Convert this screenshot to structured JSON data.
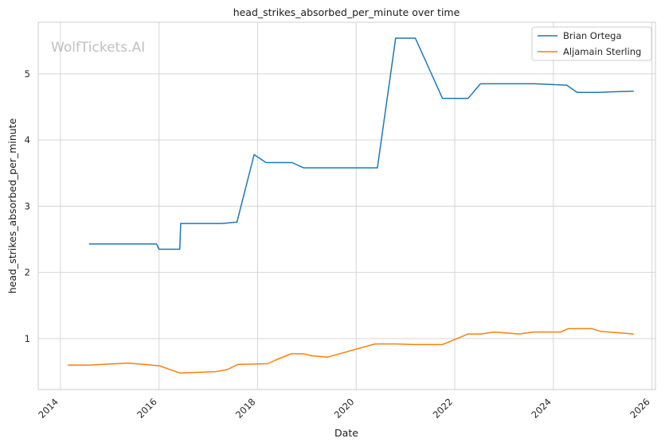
{
  "chart_data": {
    "type": "line",
    "title": "head_strikes_absorbed_per_minute over time",
    "xlabel": "Date",
    "ylabel": "head_strikes_absorbed_per_minute",
    "watermark": "WolfTickets.AI",
    "x_ticks": [
      "2014",
      "2016",
      "2018",
      "2020",
      "2022",
      "2024",
      "2026"
    ],
    "y_ticks": [
      "1",
      "2",
      "3",
      "4",
      "5"
    ],
    "xlim": [
      2013.55,
      2026.07
    ],
    "ylim": [
      0.23,
      5.78
    ],
    "grid": true,
    "legend_position": "top-right",
    "series": [
      {
        "name": "Brian Ortega",
        "color": "#1f77b4",
        "points": [
          [
            2014.58,
            2.43
          ],
          [
            2015.95,
            2.43
          ],
          [
            2016.0,
            2.35
          ],
          [
            2016.42,
            2.35
          ],
          [
            2016.44,
            2.74
          ],
          [
            2017.27,
            2.74
          ],
          [
            2017.58,
            2.76
          ],
          [
            2017.93,
            3.78
          ],
          [
            2018.17,
            3.66
          ],
          [
            2018.7,
            3.66
          ],
          [
            2018.93,
            3.58
          ],
          [
            2020.43,
            3.58
          ],
          [
            2020.8,
            5.54
          ],
          [
            2021.2,
            5.54
          ],
          [
            2021.75,
            4.63
          ],
          [
            2022.27,
            4.63
          ],
          [
            2022.52,
            4.85
          ],
          [
            2023.62,
            4.85
          ],
          [
            2024.27,
            4.83
          ],
          [
            2024.48,
            4.72
          ],
          [
            2024.9,
            4.72
          ],
          [
            2025.63,
            4.74
          ]
        ]
      },
      {
        "name": "Aljamain Sterling",
        "color": "#ff7f0e",
        "points": [
          [
            2014.15,
            0.6
          ],
          [
            2014.58,
            0.6
          ],
          [
            2015.38,
            0.63
          ],
          [
            2016.0,
            0.59
          ],
          [
            2016.42,
            0.48
          ],
          [
            2017.15,
            0.5
          ],
          [
            2017.38,
            0.53
          ],
          [
            2017.6,
            0.61
          ],
          [
            2018.2,
            0.62
          ],
          [
            2018.38,
            0.68
          ],
          [
            2018.68,
            0.77
          ],
          [
            2018.93,
            0.77
          ],
          [
            2019.1,
            0.74
          ],
          [
            2019.42,
            0.72
          ],
          [
            2020.38,
            0.92
          ],
          [
            2020.8,
            0.92
          ],
          [
            2021.17,
            0.91
          ],
          [
            2021.75,
            0.91
          ],
          [
            2022.27,
            1.07
          ],
          [
            2022.52,
            1.07
          ],
          [
            2022.8,
            1.1
          ],
          [
            2023.3,
            1.07
          ],
          [
            2023.6,
            1.1
          ],
          [
            2024.15,
            1.1
          ],
          [
            2024.3,
            1.15
          ],
          [
            2024.78,
            1.15
          ],
          [
            2024.95,
            1.11
          ],
          [
            2025.63,
            1.07
          ]
        ]
      }
    ]
  }
}
